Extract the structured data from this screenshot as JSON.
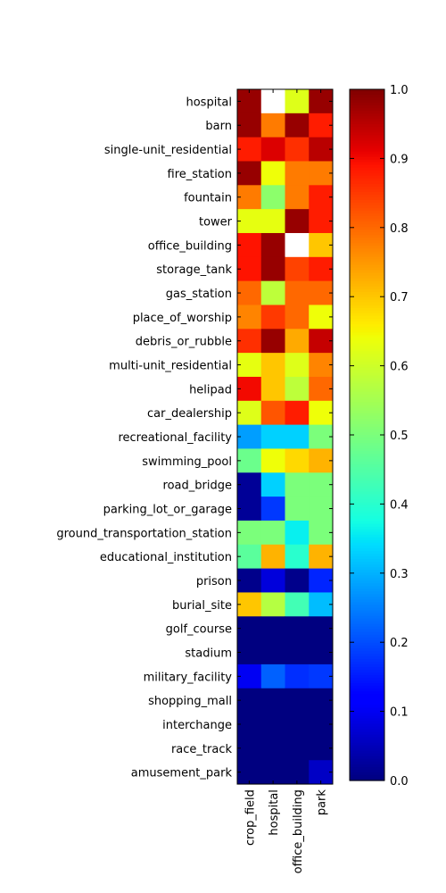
{
  "chart_data": {
    "type": "heatmap",
    "title": "",
    "xlabel": "",
    "ylabel": "",
    "x_categories": [
      "crop_field",
      "hospital",
      "office_building",
      "park"
    ],
    "y_categories": [
      "hospital",
      "barn",
      "single-unit_residential",
      "fire_station",
      "fountain",
      "tower",
      "office_building",
      "storage_tank",
      "gas_station",
      "place_of_worship",
      "debris_or_rubble",
      "multi-unit_residential",
      "helipad",
      "car_dealership",
      "recreational_facility",
      "swimming_pool",
      "road_bridge",
      "parking_lot_or_garage",
      "ground_transportation_station",
      "educational_institution",
      "prison",
      "burial_site",
      "golf_course",
      "stadium",
      "military_facility",
      "shopping_mall",
      "interchange",
      "race_track",
      "amusement_park"
    ],
    "values": [
      [
        0.98,
        null,
        0.62,
        0.98
      ],
      [
        0.98,
        0.78,
        0.98,
        0.88
      ],
      [
        0.88,
        0.92,
        0.86,
        0.95
      ],
      [
        0.98,
        0.64,
        0.78,
        0.78
      ],
      [
        0.78,
        0.52,
        0.78,
        0.88
      ],
      [
        0.63,
        0.63,
        0.98,
        0.88
      ],
      [
        0.89,
        0.98,
        null,
        0.7
      ],
      [
        0.89,
        0.98,
        0.84,
        0.88
      ],
      [
        0.8,
        0.58,
        0.8,
        0.8
      ],
      [
        0.77,
        0.85,
        0.8,
        0.64
      ],
      [
        0.86,
        0.98,
        0.73,
        0.94
      ],
      [
        0.63,
        0.7,
        0.62,
        0.77
      ],
      [
        0.9,
        0.7,
        0.58,
        0.8
      ],
      [
        0.62,
        0.82,
        0.88,
        0.64
      ],
      [
        0.28,
        0.33,
        0.33,
        0.5
      ],
      [
        0.48,
        0.64,
        0.68,
        0.72
      ],
      [
        0.02,
        0.33,
        0.5,
        0.5
      ],
      [
        0.02,
        0.18,
        0.5,
        0.5
      ],
      [
        0.5,
        0.5,
        0.36,
        0.5
      ],
      [
        0.46,
        0.72,
        0.4,
        0.72
      ],
      [
        0.01,
        0.08,
        0.01,
        0.16
      ],
      [
        0.7,
        0.57,
        0.43,
        0.31
      ],
      [
        0.0,
        0.0,
        0.0,
        0.0
      ],
      [
        0.0,
        0.0,
        0.0,
        0.0
      ],
      [
        0.1,
        0.22,
        0.17,
        0.18
      ],
      [
        0.0,
        0.0,
        0.0,
        0.0
      ],
      [
        0.0,
        0.0,
        0.0,
        0.0
      ],
      [
        0.0,
        0.0,
        0.0,
        0.0
      ],
      [
        0.0,
        0.0,
        0.0,
        0.06
      ]
    ],
    "colorbar": {
      "colormap": "jet",
      "range": [
        0.0,
        1.0
      ],
      "ticks": [
        0.0,
        0.1,
        0.2,
        0.3,
        0.4,
        0.5,
        0.6,
        0.7,
        0.8,
        0.9,
        1.0
      ],
      "tick_labels": [
        "0.0",
        "0.1",
        "0.2",
        "0.3",
        "0.4",
        "0.5",
        "0.6",
        "0.7",
        "0.8",
        "0.9",
        "1.0"
      ]
    },
    "missing_color": "#ffffff",
    "x_tick_rotation": "vertical",
    "grid": false,
    "legend": "none"
  }
}
